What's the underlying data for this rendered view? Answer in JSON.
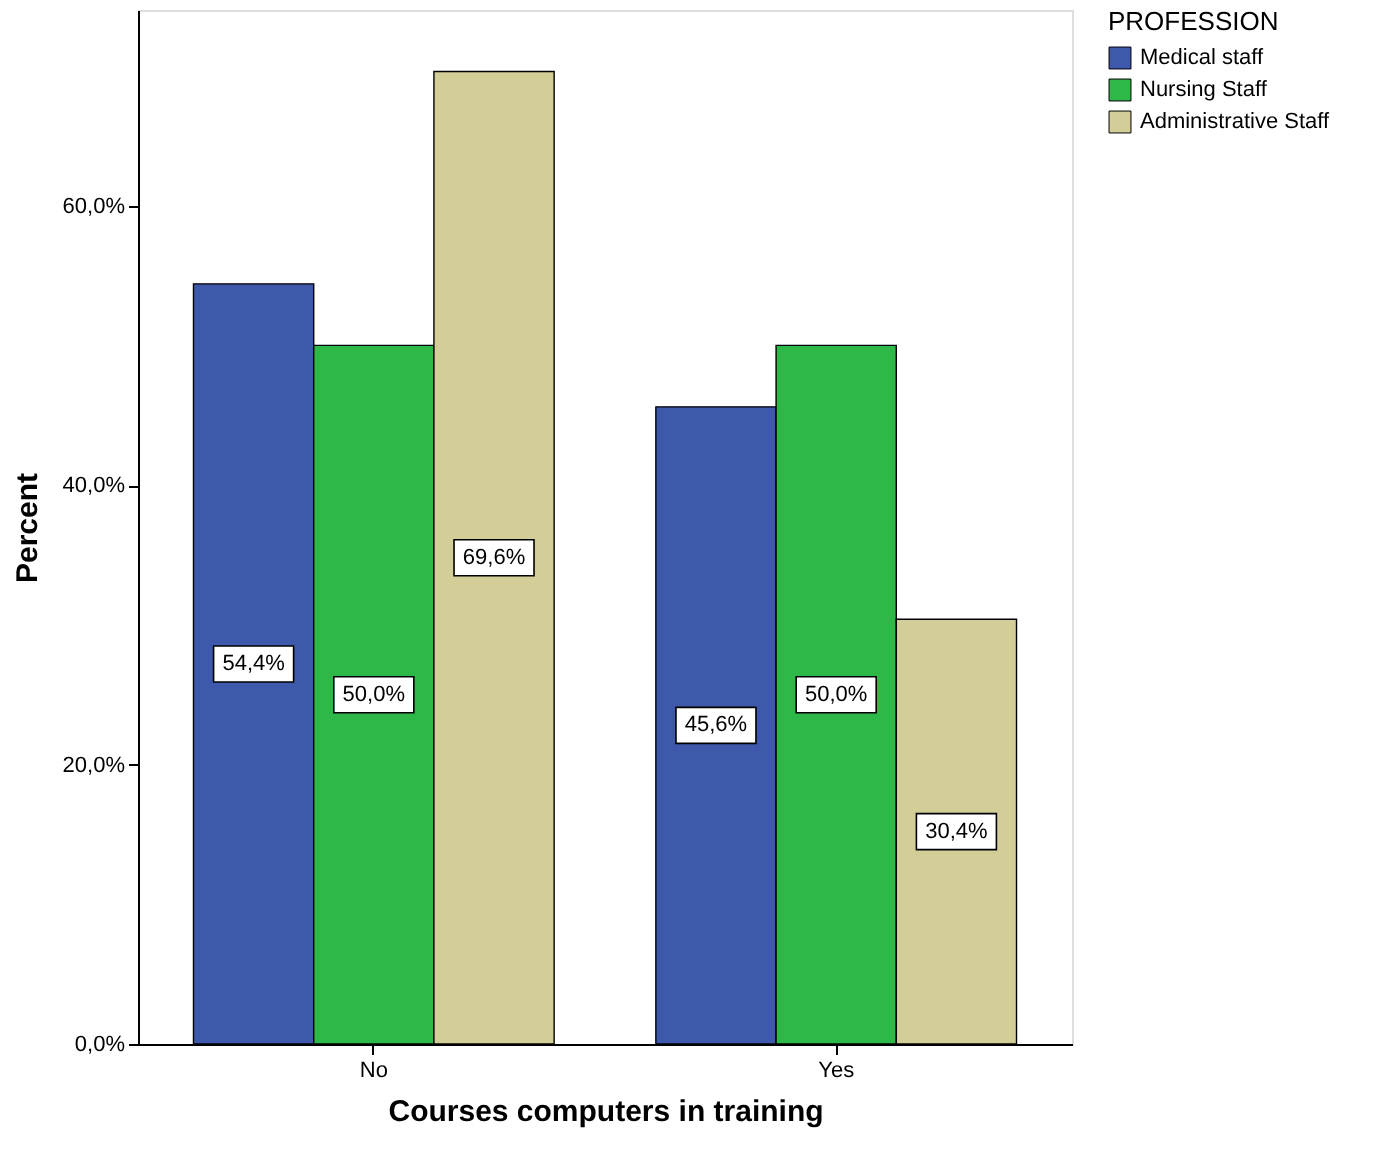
{
  "chart_data": {
    "type": "bar",
    "xlabel": "Courses computers in training",
    "ylabel": "Percent",
    "legend_title": "PROFESSION",
    "legend": "top right",
    "grid": false,
    "categories": [
      "No",
      "Yes"
    ],
    "series": [
      {
        "name": "Medical staff",
        "color": "#3e58ac",
        "values": [
          54.4,
          45.6
        ],
        "value_labels": [
          "54,4%",
          "45,6%"
        ]
      },
      {
        "name": "Nursing Staff",
        "color": "#2eb848",
        "values": [
          50.0,
          50.0
        ],
        "value_labels": [
          "50,0%",
          "50,0%"
        ]
      },
      {
        "name": "Administrative Staff",
        "color": "#d3ce97",
        "values": [
          69.6,
          30.4
        ],
        "value_labels": [
          "69,6%",
          "30,4%"
        ]
      }
    ],
    "ylim": [
      0,
      74
    ],
    "yticks": [
      {
        "value": 0,
        "label": "0,0%"
      },
      {
        "value": 20,
        "label": "20,0%"
      },
      {
        "value": 40,
        "label": "40,0%"
      },
      {
        "value": 60,
        "label": "60,0%"
      }
    ]
  }
}
